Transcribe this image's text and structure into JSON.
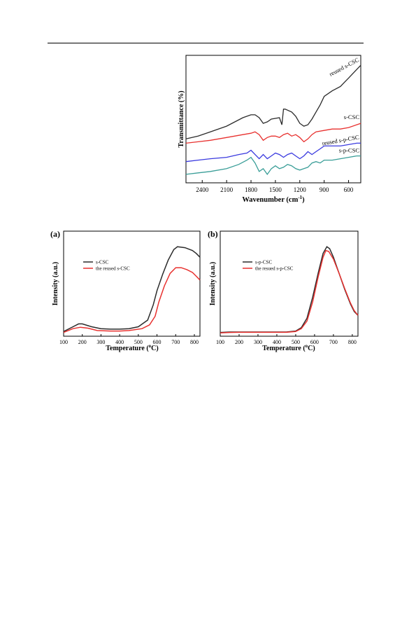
{
  "chart_data": [
    {
      "type": "line",
      "xlabel": "Wavenumber (cm⁻¹)",
      "ylabel": "Transmittance (%)",
      "xlim": [
        2600,
        450
      ],
      "x_reversed": true,
      "y_ticks_shown": false,
      "x_ticks": [
        2400,
        2100,
        1800,
        1500,
        1200,
        900,
        600
      ],
      "series": [
        {
          "name": "reused s-CSC",
          "color": "#2b2b2b",
          "points": [
            [
              2600,
              0.81
            ],
            [
              2450,
              0.79
            ],
            [
              2300,
              0.76
            ],
            [
              2100,
              0.72
            ],
            [
              1900,
              0.66
            ],
            [
              1800,
              0.64
            ],
            [
              1750,
              0.64
            ],
            [
              1700,
              0.66
            ],
            [
              1650,
              0.7
            ],
            [
              1600,
              0.69
            ],
            [
              1550,
              0.67
            ],
            [
              1450,
              0.66
            ],
            [
              1420,
              0.71
            ],
            [
              1400,
              0.6
            ],
            [
              1380,
              0.6
            ],
            [
              1300,
              0.62
            ],
            [
              1250,
              0.65
            ],
            [
              1200,
              0.7
            ],
            [
              1150,
              0.72
            ],
            [
              1100,
              0.71
            ],
            [
              1050,
              0.67
            ],
            [
              1000,
              0.62
            ],
            [
              950,
              0.57
            ],
            [
              900,
              0.51
            ],
            [
              800,
              0.47
            ],
            [
              700,
              0.44
            ],
            [
              650,
              0.41
            ],
            [
              600,
              0.38
            ],
            [
              500,
              0.32
            ],
            [
              450,
              0.29
            ]
          ]
        },
        {
          "name": "s-CSC",
          "color": "#e8312f",
          "points": [
            [
              2600,
              0.84
            ],
            [
              2450,
              0.83
            ],
            [
              2300,
              0.82
            ],
            [
              2100,
              0.8
            ],
            [
              1900,
              0.78
            ],
            [
              1800,
              0.77
            ],
            [
              1750,
              0.76
            ],
            [
              1700,
              0.78
            ],
            [
              1650,
              0.82
            ],
            [
              1600,
              0.8
            ],
            [
              1550,
              0.79
            ],
            [
              1500,
              0.79
            ],
            [
              1450,
              0.8
            ],
            [
              1400,
              0.78
            ],
            [
              1350,
              0.77
            ],
            [
              1300,
              0.79
            ],
            [
              1250,
              0.78
            ],
            [
              1200,
              0.8
            ],
            [
              1150,
              0.83
            ],
            [
              1100,
              0.81
            ],
            [
              1050,
              0.78
            ],
            [
              1000,
              0.76
            ],
            [
              900,
              0.75
            ],
            [
              800,
              0.74
            ],
            [
              700,
              0.74
            ],
            [
              600,
              0.73
            ],
            [
              500,
              0.71
            ],
            [
              450,
              0.7
            ]
          ]
        },
        {
          "name": "reused s-p-CSC",
          "color": "#3a3adf",
          "points": [
            [
              2600,
              0.97
            ],
            [
              2450,
              0.96
            ],
            [
              2300,
              0.95
            ],
            [
              2100,
              0.94
            ],
            [
              1950,
              0.92
            ],
            [
              1850,
              0.91
            ],
            [
              1800,
              0.89
            ],
            [
              1750,
              0.92
            ],
            [
              1700,
              0.95
            ],
            [
              1650,
              0.92
            ],
            [
              1600,
              0.95
            ],
            [
              1550,
              0.93
            ],
            [
              1500,
              0.91
            ],
            [
              1450,
              0.92
            ],
            [
              1400,
              0.94
            ],
            [
              1350,
              0.92
            ],
            [
              1300,
              0.91
            ],
            [
              1250,
              0.93
            ],
            [
              1200,
              0.95
            ],
            [
              1150,
              0.93
            ],
            [
              1100,
              0.9
            ],
            [
              1050,
              0.92
            ],
            [
              1000,
              0.9
            ],
            [
              950,
              0.88
            ],
            [
              900,
              0.86
            ],
            [
              800,
              0.86
            ],
            [
              700,
              0.86
            ],
            [
              600,
              0.85
            ],
            [
              500,
              0.84
            ],
            [
              450,
              0.84
            ]
          ]
        },
        {
          "name": "s-p-CSC",
          "color": "#3a9e98",
          "points": [
            [
              2600,
              1.06
            ],
            [
              2450,
              1.05
            ],
            [
              2300,
              1.04
            ],
            [
              2100,
              1.02
            ],
            [
              1950,
              0.99
            ],
            [
              1850,
              0.96
            ],
            [
              1800,
              0.94
            ],
            [
              1750,
              0.98
            ],
            [
              1700,
              1.04
            ],
            [
              1650,
              1.02
            ],
            [
              1600,
              1.06
            ],
            [
              1550,
              1.02
            ],
            [
              1500,
              1.0
            ],
            [
              1450,
              1.02
            ],
            [
              1400,
              1.01
            ],
            [
              1350,
              0.99
            ],
            [
              1300,
              1.0
            ],
            [
              1250,
              1.02
            ],
            [
              1200,
              1.03
            ],
            [
              1150,
              1.02
            ],
            [
              1100,
              1.01
            ],
            [
              1050,
              0.98
            ],
            [
              1000,
              0.97
            ],
            [
              950,
              0.98
            ],
            [
              900,
              0.96
            ],
            [
              800,
              0.96
            ],
            [
              700,
              0.95
            ],
            [
              600,
              0.94
            ],
            [
              500,
              0.93
            ],
            [
              450,
              0.93
            ]
          ]
        }
      ],
      "annotations": [
        "reused s-CSC",
        "s-CSC",
        "reused s-p-CSC",
        "s-p-CSC"
      ]
    },
    {
      "type": "line",
      "panel_label": "(a)",
      "xlabel": "Temperature (°C)",
      "ylabel": "Intensity (a.u.)",
      "xlim": [
        100,
        830
      ],
      "x_ticks": [
        100,
        200,
        300,
        400,
        500,
        600,
        700,
        800
      ],
      "y_ticks_shown": false,
      "legend_placement": "upper-left",
      "series": [
        {
          "name": "s-CSC",
          "color": "#2b2b2b",
          "points": [
            [
              100,
              0.02
            ],
            [
              150,
              0.07
            ],
            [
              180,
              0.1
            ],
            [
              200,
              0.1
            ],
            [
              250,
              0.07
            ],
            [
              300,
              0.05
            ],
            [
              350,
              0.045
            ],
            [
              400,
              0.045
            ],
            [
              450,
              0.05
            ],
            [
              500,
              0.07
            ],
            [
              550,
              0.14
            ],
            [
              580,
              0.3
            ],
            [
              600,
              0.45
            ],
            [
              630,
              0.62
            ],
            [
              660,
              0.77
            ],
            [
              690,
              0.88
            ],
            [
              710,
              0.91
            ],
            [
              750,
              0.9
            ],
            [
              790,
              0.87
            ],
            [
              810,
              0.84
            ],
            [
              830,
              0.8
            ]
          ]
        },
        {
          "name": "the reused s-CSC",
          "color": "#e8312f",
          "points": [
            [
              100,
              0.01
            ],
            [
              150,
              0.05
            ],
            [
              190,
              0.065
            ],
            [
              230,
              0.055
            ],
            [
              280,
              0.03
            ],
            [
              350,
              0.025
            ],
            [
              400,
              0.025
            ],
            [
              450,
              0.03
            ],
            [
              520,
              0.05
            ],
            [
              560,
              0.09
            ],
            [
              590,
              0.18
            ],
            [
              610,
              0.33
            ],
            [
              640,
              0.5
            ],
            [
              670,
              0.63
            ],
            [
              700,
              0.69
            ],
            [
              730,
              0.69
            ],
            [
              760,
              0.67
            ],
            [
              790,
              0.64
            ],
            [
              810,
              0.6
            ],
            [
              830,
              0.56
            ]
          ]
        }
      ]
    },
    {
      "type": "line",
      "panel_label": "(b)",
      "xlabel": "Temperature (°C)",
      "ylabel": "Intensity (a.u.)",
      "xlim": [
        100,
        830
      ],
      "x_ticks": [
        100,
        200,
        300,
        400,
        500,
        600,
        700,
        800
      ],
      "y_ticks_shown": false,
      "legend_placement": "upper-left",
      "series": [
        {
          "name": "s-p-CSC",
          "color": "#2b2b2b",
          "points": [
            [
              100,
              0.01
            ],
            [
              150,
              0.015
            ],
            [
              200,
              0.015
            ],
            [
              300,
              0.015
            ],
            [
              400,
              0.015
            ],
            [
              450,
              0.015
            ],
            [
              500,
              0.025
            ],
            [
              530,
              0.06
            ],
            [
              560,
              0.16
            ],
            [
              590,
              0.38
            ],
            [
              620,
              0.64
            ],
            [
              645,
              0.84
            ],
            [
              665,
              0.91
            ],
            [
              680,
              0.89
            ],
            [
              700,
              0.8
            ],
            [
              730,
              0.63
            ],
            [
              760,
              0.46
            ],
            [
              790,
              0.31
            ],
            [
              810,
              0.23
            ],
            [
              830,
              0.19
            ]
          ]
        },
        {
          "name": "the resued s-p-CSC",
          "color": "#e8312f",
          "points": [
            [
              100,
              0.005
            ],
            [
              150,
              0.01
            ],
            [
              200,
              0.012
            ],
            [
              300,
              0.012
            ],
            [
              400,
              0.012
            ],
            [
              450,
              0.012
            ],
            [
              500,
              0.02
            ],
            [
              530,
              0.05
            ],
            [
              560,
              0.13
            ],
            [
              590,
              0.33
            ],
            [
              620,
              0.6
            ],
            [
              645,
              0.8
            ],
            [
              660,
              0.87
            ],
            [
              675,
              0.86
            ],
            [
              700,
              0.78
            ],
            [
              730,
              0.63
            ],
            [
              760,
              0.47
            ],
            [
              790,
              0.32
            ],
            [
              810,
              0.24
            ],
            [
              830,
              0.19
            ]
          ]
        }
      ]
    }
  ]
}
